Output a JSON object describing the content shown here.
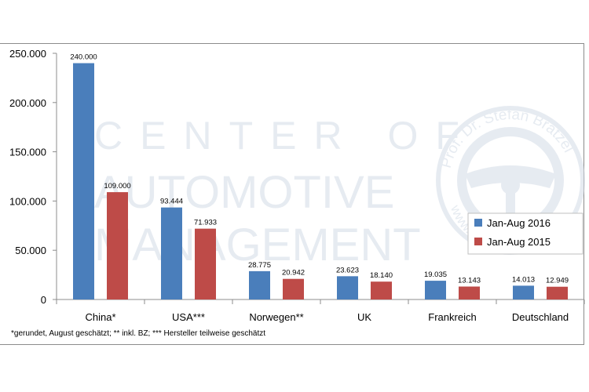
{
  "chart_data": {
    "type": "bar",
    "categories": [
      "China*",
      "USA***",
      "Norwegen**",
      "UK",
      "Frankreich",
      "Deutschland"
    ],
    "series": [
      {
        "name": "Jan-Aug 2016",
        "color": "#4a7ebb",
        "values": [
          240000,
          93444,
          28775,
          23623,
          19035,
          14013
        ],
        "labels": [
          "240.000",
          "93.444",
          "28.775",
          "23.623",
          "19.035",
          "14.013"
        ]
      },
      {
        "name": "Jan-Aug 2015",
        "color": "#be4b48",
        "values": [
          109000,
          71933,
          20942,
          18140,
          13143,
          12949
        ],
        "labels": [
          "109.000",
          "71.933",
          "20.942",
          "18.140",
          "13.143",
          "12.949"
        ]
      }
    ],
    "ylim": [
      0,
      250000
    ],
    "yticks": [
      0,
      50000,
      100000,
      150000,
      200000,
      250000
    ],
    "ytick_labels": [
      "0",
      "50.000",
      "100.000",
      "150.000",
      "200.000",
      "250.000"
    ],
    "legend_position": "right",
    "grid": false
  },
  "watermark": {
    "lines": [
      "CENTER OF",
      "AUTOMOTIVE",
      "MANAGEMENT"
    ],
    "seal_top": "Prof. Dr. Stefan Bratzel",
    "seal_bottom": "www.auto-institut.de"
  },
  "footnote": "*gerundet, August geschätzt; ** inkl. BZ; *** Hersteller teilweise geschätzt"
}
